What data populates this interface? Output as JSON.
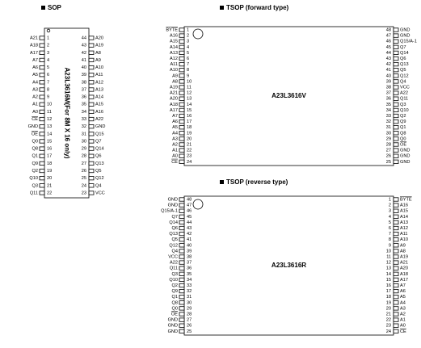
{
  "sop": {
    "title": "SOP",
    "part": "A23L3616M(For 8M X 16 only)",
    "left": [
      {
        "pin": 1,
        "label": "A21"
      },
      {
        "pin": 2,
        "label": "A18"
      },
      {
        "pin": 3,
        "label": "A17"
      },
      {
        "pin": 4,
        "label": "A7"
      },
      {
        "pin": 5,
        "label": "A6"
      },
      {
        "pin": 6,
        "label": "A5"
      },
      {
        "pin": 7,
        "label": "A4"
      },
      {
        "pin": 8,
        "label": "A3"
      },
      {
        "pin": 9,
        "label": "A2"
      },
      {
        "pin": 10,
        "label": "A1"
      },
      {
        "pin": 11,
        "label": "A0"
      },
      {
        "pin": 12,
        "label": "CE",
        "bar": true
      },
      {
        "pin": 13,
        "label": "GND"
      },
      {
        "pin": 14,
        "label": "OE",
        "bar": true
      },
      {
        "pin": 15,
        "label": "Q0"
      },
      {
        "pin": 16,
        "label": "Q8"
      },
      {
        "pin": 17,
        "label": "Q1"
      },
      {
        "pin": 18,
        "label": "Q9"
      },
      {
        "pin": 19,
        "label": "Q2"
      },
      {
        "pin": 20,
        "label": "Q10"
      },
      {
        "pin": 21,
        "label": "Q3"
      },
      {
        "pin": 22,
        "label": "Q11"
      }
    ],
    "right": [
      {
        "pin": 44,
        "label": "A20"
      },
      {
        "pin": 43,
        "label": "A19"
      },
      {
        "pin": 42,
        "label": "A8"
      },
      {
        "pin": 41,
        "label": "A9"
      },
      {
        "pin": 40,
        "label": "A10"
      },
      {
        "pin": 39,
        "label": "A11"
      },
      {
        "pin": 38,
        "label": "A12"
      },
      {
        "pin": 37,
        "label": "A13"
      },
      {
        "pin": 36,
        "label": "A14"
      },
      {
        "pin": 35,
        "label": "A15"
      },
      {
        "pin": 34,
        "label": "A16"
      },
      {
        "pin": 33,
        "label": "A22"
      },
      {
        "pin": 32,
        "label": "GND"
      },
      {
        "pin": 31,
        "label": "Q15"
      },
      {
        "pin": 30,
        "label": "Q7"
      },
      {
        "pin": 29,
        "label": "Q14"
      },
      {
        "pin": 28,
        "label": "Q6"
      },
      {
        "pin": 27,
        "label": "Q13"
      },
      {
        "pin": 26,
        "label": "Q5"
      },
      {
        "pin": 25,
        "label": "Q12"
      },
      {
        "pin": 24,
        "label": "Q4"
      },
      {
        "pin": 23,
        "label": "VCC"
      }
    ]
  },
  "tsop_forward": {
    "title": "TSOP (forward type)",
    "part": "A23L3616V",
    "left": [
      {
        "pin": 1,
        "label": "BYTE",
        "bar": true
      },
      {
        "pin": 2,
        "label": "A16"
      },
      {
        "pin": 3,
        "label": "A15"
      },
      {
        "pin": 4,
        "label": "A14"
      },
      {
        "pin": 5,
        "label": "A13"
      },
      {
        "pin": 6,
        "label": "A12"
      },
      {
        "pin": 7,
        "label": "A11"
      },
      {
        "pin": 8,
        "label": "A10"
      },
      {
        "pin": 9,
        "label": "A9"
      },
      {
        "pin": 10,
        "label": "A8"
      },
      {
        "pin": 11,
        "label": "A19"
      },
      {
        "pin": 12,
        "label": "A21"
      },
      {
        "pin": 13,
        "label": "A20"
      },
      {
        "pin": 14,
        "label": "A18"
      },
      {
        "pin": 15,
        "label": "A17"
      },
      {
        "pin": 16,
        "label": "A7"
      },
      {
        "pin": 17,
        "label": "A6"
      },
      {
        "pin": 18,
        "label": "A5"
      },
      {
        "pin": 19,
        "label": "A4"
      },
      {
        "pin": 20,
        "label": "A3"
      },
      {
        "pin": 21,
        "label": "A2"
      },
      {
        "pin": 22,
        "label": "A1"
      },
      {
        "pin": 23,
        "label": "A0"
      },
      {
        "pin": 24,
        "label": "CE",
        "bar": true
      }
    ],
    "right": [
      {
        "pin": 48,
        "label": "GND"
      },
      {
        "pin": 47,
        "label": "GND"
      },
      {
        "pin": 46,
        "label": "Q15/A-1"
      },
      {
        "pin": 45,
        "label": "Q7"
      },
      {
        "pin": 44,
        "label": "Q14"
      },
      {
        "pin": 43,
        "label": "Q6"
      },
      {
        "pin": 42,
        "label": "Q13"
      },
      {
        "pin": 41,
        "label": "Q5"
      },
      {
        "pin": 40,
        "label": "Q12"
      },
      {
        "pin": 39,
        "label": "Q4"
      },
      {
        "pin": 38,
        "label": "VCC"
      },
      {
        "pin": 37,
        "label": "A22"
      },
      {
        "pin": 36,
        "label": "Q11"
      },
      {
        "pin": 35,
        "label": "Q3"
      },
      {
        "pin": 34,
        "label": "Q10"
      },
      {
        "pin": 33,
        "label": "Q2"
      },
      {
        "pin": 32,
        "label": "Q9"
      },
      {
        "pin": 31,
        "label": "Q1"
      },
      {
        "pin": 30,
        "label": "Q8"
      },
      {
        "pin": 29,
        "label": "Q0"
      },
      {
        "pin": 28,
        "label": "OE",
        "bar": true
      },
      {
        "pin": 27,
        "label": "GND"
      },
      {
        "pin": 26,
        "label": "GND"
      },
      {
        "pin": 25,
        "label": "GND"
      }
    ]
  },
  "tsop_reverse": {
    "title": "TSOP (reverse type)",
    "part": "A23L3616R",
    "left": [
      {
        "pin": 48,
        "label": "GND"
      },
      {
        "pin": 47,
        "label": "GND"
      },
      {
        "pin": 46,
        "label": "Q15/A-1"
      },
      {
        "pin": 45,
        "label": "Q7"
      },
      {
        "pin": 44,
        "label": "Q14"
      },
      {
        "pin": 43,
        "label": "Q6"
      },
      {
        "pin": 42,
        "label": "Q13"
      },
      {
        "pin": 41,
        "label": "Q5"
      },
      {
        "pin": 40,
        "label": "Q12"
      },
      {
        "pin": 39,
        "label": "Q4"
      },
      {
        "pin": 38,
        "label": "VCC"
      },
      {
        "pin": 37,
        "label": "A22"
      },
      {
        "pin": 36,
        "label": "Q11"
      },
      {
        "pin": 35,
        "label": "Q3"
      },
      {
        "pin": 34,
        "label": "Q10"
      },
      {
        "pin": 33,
        "label": "Q2"
      },
      {
        "pin": 32,
        "label": "Q9"
      },
      {
        "pin": 31,
        "label": "Q1"
      },
      {
        "pin": 30,
        "label": "Q8"
      },
      {
        "pin": 29,
        "label": "Q0"
      },
      {
        "pin": 28,
        "label": "OE",
        "bar": true
      },
      {
        "pin": 27,
        "label": "GND"
      },
      {
        "pin": 26,
        "label": "GND"
      },
      {
        "pin": 25,
        "label": "GND"
      }
    ],
    "right": [
      {
        "pin": 1,
        "label": "BYTE",
        "bar": true
      },
      {
        "pin": 2,
        "label": "A16"
      },
      {
        "pin": 3,
        "label": "A15"
      },
      {
        "pin": 4,
        "label": "A14"
      },
      {
        "pin": 5,
        "label": "A13"
      },
      {
        "pin": 6,
        "label": "A12"
      },
      {
        "pin": 7,
        "label": "A11"
      },
      {
        "pin": 8,
        "label": "A10"
      },
      {
        "pin": 9,
        "label": "A9"
      },
      {
        "pin": 10,
        "label": "A8"
      },
      {
        "pin": 11,
        "label": "A19"
      },
      {
        "pin": 12,
        "label": "A21"
      },
      {
        "pin": 13,
        "label": "A20"
      },
      {
        "pin": 14,
        "label": "A18"
      },
      {
        "pin": 15,
        "label": "A17"
      },
      {
        "pin": 16,
        "label": "A7"
      },
      {
        "pin": 17,
        "label": "A6"
      },
      {
        "pin": 18,
        "label": "A5"
      },
      {
        "pin": 19,
        "label": "A4"
      },
      {
        "pin": 20,
        "label": "A3"
      },
      {
        "pin": 21,
        "label": "A2"
      },
      {
        "pin": 22,
        "label": "A1"
      },
      {
        "pin": 23,
        "label": "A0"
      },
      {
        "pin": 24,
        "label": "CE",
        "bar": true
      }
    ]
  }
}
